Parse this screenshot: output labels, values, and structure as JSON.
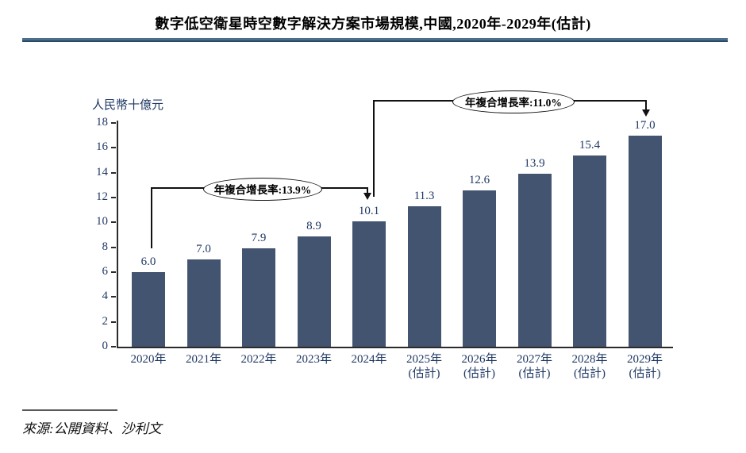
{
  "header": {
    "title": "數字低空衛星時空數字解決方案市場規模,中國,2020年-2029年(估計)"
  },
  "chart_data": {
    "type": "bar",
    "title": "數字低空衛星時空數字解決方案市場規模,中國,2020年-2029年(估計)",
    "ylabel": "人民幣十億元",
    "xlabel": "",
    "categories": [
      "2020年",
      "2021年",
      "2022年",
      "2023年",
      "2024年",
      "2025年\n(估計)",
      "2026年\n(估計)",
      "2027年\n(估計)",
      "2028年\n(估計)",
      "2029年\n(估計)"
    ],
    "values": [
      6.0,
      7.0,
      7.9,
      8.9,
      10.1,
      11.3,
      12.6,
      13.9,
      15.4,
      17.0
    ],
    "ylim": [
      0,
      18
    ],
    "yticks": [
      0,
      2,
      4,
      6,
      8,
      10,
      12,
      14,
      16,
      18
    ],
    "grid": false,
    "legend": false,
    "bar_color": "#435471",
    "value_label_color": "#1f3864",
    "axis_label_color": "#1f3864",
    "annotations": [
      {
        "label": "年複合增長率:13.9%",
        "from": "2020年",
        "to": "2024年"
      },
      {
        "label": "年複合增長率:11.0%",
        "from": "2024年",
        "to": "2029年(估計)"
      }
    ]
  },
  "footer": {
    "source": "來源:公開資料、沙利文"
  }
}
